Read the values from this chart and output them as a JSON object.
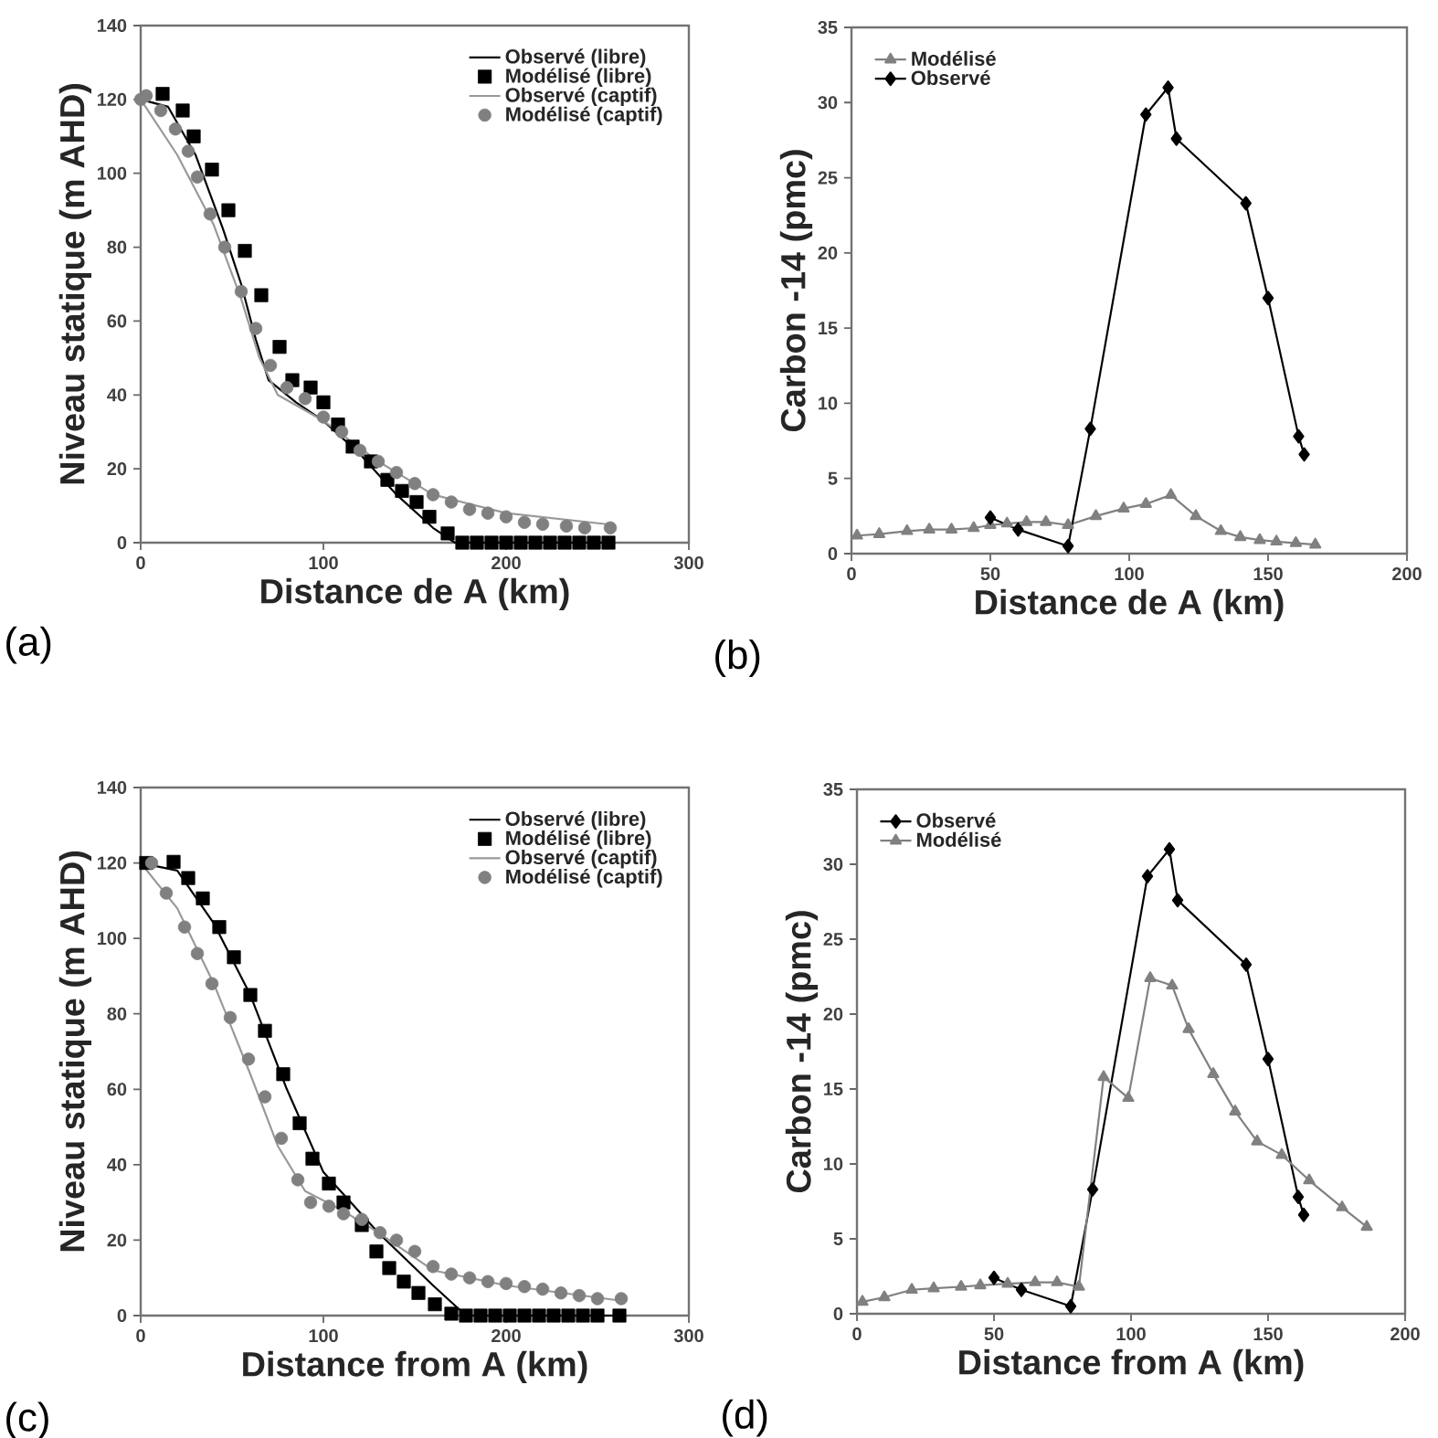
{
  "chart_data": [
    {
      "type": "line",
      "xlabel": "Distance de A (km)",
      "ylabel": "Niveau statique (m AHD)",
      "xlim": [
        0,
        300
      ],
      "ylim": [
        0,
        140
      ],
      "xticks": [
        0,
        100,
        200,
        300
      ],
      "yticks": [
        0,
        20,
        40,
        60,
        80,
        100,
        120,
        140
      ],
      "legend": "top right",
      "annotations": [
        "(a)"
      ],
      "series": [
        {
          "name": "Observé (libre)",
          "marker": "none",
          "color": "#000000",
          "x": [
            0,
            15,
            30,
            45,
            55,
            63,
            70,
            85,
            100,
            120,
            140,
            160,
            172,
            255
          ],
          "values": [
            120,
            118,
            105,
            85,
            70,
            55,
            44,
            38,
            33,
            24,
            13,
            4,
            0,
            0
          ]
        },
        {
          "name": "Modélisé (libre)",
          "type": "scatter",
          "marker": "square",
          "color": "#000000",
          "x": [
            12,
            23,
            29,
            39,
            48,
            57,
            66,
            76,
            83,
            93,
            100,
            108,
            116,
            126,
            135,
            143,
            151,
            158,
            168,
            176,
            184,
            192,
            200,
            208,
            216,
            224,
            232,
            240,
            248,
            256
          ],
          "values": [
            121.5,
            117,
            110,
            101,
            90,
            79,
            67,
            53,
            44,
            42,
            38,
            32,
            26,
            22,
            17,
            14,
            11,
            7,
            2.5,
            0,
            0,
            0,
            0,
            0,
            0,
            0,
            0,
            0,
            0,
            0
          ]
        },
        {
          "name": "Observé (captif)",
          "marker": "none",
          "color": "#999999",
          "x": [
            0,
            20,
            40,
            55,
            65,
            75,
            100,
            130,
            160,
            200,
            255
          ],
          "values": [
            120,
            105,
            86,
            66,
            50,
            40,
            33,
            22,
            13,
            8,
            5
          ]
        },
        {
          "name": "Modélisé (captif)",
          "type": "scatter",
          "marker": "circle",
          "color": "#808080",
          "x": [
            0,
            3,
            11,
            19,
            26,
            31,
            38,
            46,
            55,
            63,
            71,
            80,
            90,
            100,
            110,
            120,
            130,
            140,
            150,
            160,
            170,
            180,
            190,
            200,
            210,
            220,
            233,
            243,
            257
          ],
          "values": [
            120,
            121,
            117,
            112,
            106,
            99,
            89,
            80,
            68,
            58,
            48,
            42,
            39,
            34,
            30,
            25,
            22,
            19,
            16,
            13,
            11,
            9,
            8,
            7,
            5.5,
            5,
            4.5,
            4,
            4
          ]
        }
      ]
    },
    {
      "type": "line",
      "xlabel": "Distance de A (km)",
      "ylabel": "Carbon -14 (pmc)",
      "xlim": [
        0,
        200
      ],
      "ylim": [
        0,
        35
      ],
      "xticks": [
        0,
        50,
        100,
        150,
        200
      ],
      "yticks": [
        0,
        5,
        10,
        15,
        20,
        25,
        30,
        35
      ],
      "legend": "top left",
      "annotations": [
        "(b)"
      ],
      "series": [
        {
          "name": "Modélisé",
          "marker": "triangle",
          "color": "#808080",
          "x": [
            2,
            10,
            20,
            28,
            36,
            44,
            50,
            56,
            63,
            70,
            78,
            88,
            98,
            106,
            115,
            124,
            133,
            140,
            147,
            153,
            160,
            167
          ],
          "values": [
            1.2,
            1.3,
            1.5,
            1.6,
            1.6,
            1.7,
            1.9,
            2.0,
            2.1,
            2.1,
            1.9,
            2.5,
            3.0,
            3.3,
            3.9,
            2.5,
            1.5,
            1.1,
            0.9,
            0.8,
            0.7,
            0.6
          ]
        },
        {
          "name": "Observé",
          "marker": "diamond",
          "color": "#000000",
          "x": [
            50,
            60,
            78,
            86,
            106,
            114,
            117,
            142,
            150,
            161,
            163
          ],
          "values": [
            2.4,
            1.6,
            0.5,
            8.3,
            29.2,
            31.0,
            27.6,
            23.3,
            17.0,
            7.8,
            6.6
          ]
        }
      ]
    },
    {
      "type": "line",
      "xlabel": "Distance from A (km)",
      "ylabel": "Niveau statique (m AHD)",
      "xlim": [
        0,
        300
      ],
      "ylim": [
        0,
        140
      ],
      "xticks": [
        0,
        100,
        200,
        300
      ],
      "yticks": [
        0,
        20,
        40,
        60,
        80,
        100,
        120,
        140
      ],
      "legend": "top right",
      "annotations": [
        "(c)"
      ],
      "series": [
        {
          "name": "Observé (libre)",
          "marker": "none",
          "color": "#000000",
          "x": [
            0,
            20,
            40,
            60,
            80,
            100,
            130,
            160,
            178,
            262
          ],
          "values": [
            120,
            118,
            104,
            85,
            60,
            38,
            22,
            8,
            0,
            0
          ]
        },
        {
          "name": "Modélisé (libre)",
          "type": "scatter",
          "marker": "square",
          "color": "#000000",
          "x": [
            3,
            18,
            26,
            34,
            43,
            51,
            60,
            68,
            78,
            87,
            94,
            103,
            111,
            121,
            129,
            136,
            144,
            152,
            161,
            170,
            178,
            186,
            194,
            202,
            210,
            218,
            226,
            234,
            242,
            250,
            262
          ],
          "values": [
            120,
            120.3,
            116,
            110.6,
            103,
            95,
            85,
            75.5,
            64,
            51,
            41.6,
            35,
            30,
            24,
            17,
            12.6,
            9,
            6,
            3,
            0.5,
            0,
            0,
            0,
            0,
            0,
            0,
            0,
            0,
            0,
            0,
            0
          ]
        },
        {
          "name": "Observé (captif)",
          "marker": "none",
          "color": "#999999",
          "x": [
            0,
            20,
            40,
            60,
            75,
            90,
            110,
            130,
            160,
            200,
            262
          ],
          "values": [
            120,
            108,
            88,
            64,
            45,
            33,
            28,
            22,
            12,
            8,
            4
          ]
        },
        {
          "name": "Modélisé (captif)",
          "type": "scatter",
          "marker": "circle",
          "color": "#808080",
          "x": [
            6,
            14,
            24,
            31,
            39,
            49,
            59,
            68,
            77,
            86,
            93,
            103,
            111,
            121,
            131,
            140,
            150,
            160,
            170,
            180,
            190,
            200,
            210,
            220,
            230,
            240,
            250,
            263
          ],
          "values": [
            120,
            112,
            103,
            96,
            88,
            79,
            68,
            58,
            47,
            36,
            30,
            29,
            27,
            25.5,
            22,
            20,
            17,
            13,
            11,
            10,
            9,
            8.5,
            7.7,
            7,
            6,
            5.3,
            4.5,
            4.5
          ]
        }
      ]
    },
    {
      "type": "line",
      "xlabel": "Distance from A (km)",
      "ylabel": "Carbon -14 (pmc)",
      "xlim": [
        0,
        200
      ],
      "ylim": [
        0,
        35
      ],
      "xticks": [
        0,
        50,
        100,
        150,
        200
      ],
      "yticks": [
        0,
        5,
        10,
        15,
        20,
        25,
        30,
        35
      ],
      "legend": "top left",
      "annotations": [
        "(d)"
      ],
      "series": [
        {
          "name": "Observé",
          "marker": "diamond",
          "color": "#000000",
          "x": [
            50,
            60,
            78,
            86,
            106,
            114,
            117,
            142,
            150,
            161,
            163
          ],
          "values": [
            2.4,
            1.6,
            0.5,
            8.3,
            29.2,
            31.0,
            27.6,
            23.3,
            17.0,
            7.8,
            6.6
          ]
        },
        {
          "name": "Modélisé",
          "marker": "triangle",
          "color": "#808080",
          "x": [
            2,
            10,
            20,
            28,
            38,
            45,
            55,
            65,
            73,
            81,
            90,
            99,
            107,
            115,
            121,
            130,
            138,
            146,
            155,
            165,
            177,
            186
          ],
          "values": [
            0.8,
            1.1,
            1.6,
            1.7,
            1.8,
            1.9,
            2.0,
            2.1,
            2.1,
            1.8,
            15.8,
            14.4,
            22.4,
            21.9,
            19.0,
            16.0,
            13.5,
            11.5,
            10.6,
            8.9,
            7.1,
            5.8
          ]
        }
      ]
    }
  ]
}
